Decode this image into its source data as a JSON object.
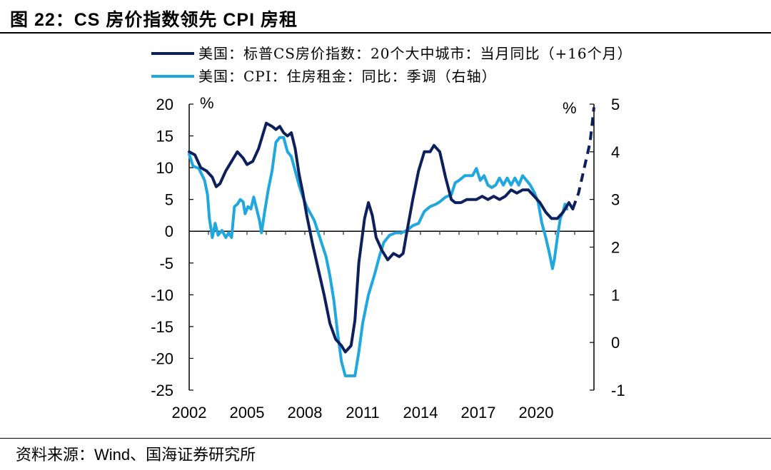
{
  "title": "图 22：CS 房价指数领先 CPI 房租",
  "source": "资料来源：Wind、国海证券研究所",
  "colors": {
    "case_shiller": "#0d1f5c",
    "cpi_rent": "#1fa8e0"
  },
  "chart_data": {
    "type": "line",
    "x_ticks": [
      "2002",
      "2005",
      "2008",
      "2011",
      "2014",
      "2017",
      "2020"
    ],
    "x_range": [
      2002,
      2023
    ],
    "left_axis": {
      "unit": "%",
      "ylim": [
        -25,
        20
      ],
      "ticks": [
        20,
        15,
        10,
        5,
        0,
        -5,
        -10,
        -15,
        -20,
        -25
      ]
    },
    "right_axis": {
      "unit": "%",
      "ylim": [
        -1,
        5
      ],
      "ticks": [
        5,
        4,
        3,
        2,
        1,
        0,
        -1
      ]
    },
    "series": [
      {
        "name": "美国：标普CS房价指数：20个大中城市：当月同比（+16个月）",
        "axis": "left",
        "color": "#0d1f5c",
        "points": [
          [
            2002.0,
            12.5
          ],
          [
            2002.3,
            12.0
          ],
          [
            2002.6,
            10.0
          ],
          [
            2002.9,
            9.5
          ],
          [
            2003.2,
            8.5
          ],
          [
            2003.4,
            7.0
          ],
          [
            2003.6,
            7.5
          ],
          [
            2003.9,
            9.5
          ],
          [
            2004.2,
            11.0
          ],
          [
            2004.5,
            12.5
          ],
          [
            2004.8,
            11.5
          ],
          [
            2005.0,
            10.5
          ],
          [
            2005.3,
            11.0
          ],
          [
            2005.6,
            13.0
          ],
          [
            2005.8,
            15.0
          ],
          [
            2006.0,
            17.0
          ],
          [
            2006.3,
            16.5
          ],
          [
            2006.5,
            16.0
          ],
          [
            2006.7,
            16.5
          ],
          [
            2006.9,
            15.5
          ],
          [
            2007.1,
            15.0
          ],
          [
            2007.3,
            15.5
          ],
          [
            2007.5,
            13.0
          ],
          [
            2007.7,
            9.0
          ],
          [
            2007.9,
            6.0
          ],
          [
            2008.1,
            2.5
          ],
          [
            2008.4,
            -2.0
          ],
          [
            2008.7,
            -6.0
          ],
          [
            2009.0,
            -10.0
          ],
          [
            2009.3,
            -14.5
          ],
          [
            2009.6,
            -17.0
          ],
          [
            2009.9,
            -18.0
          ],
          [
            2010.1,
            -19.0
          ],
          [
            2010.4,
            -18.0
          ],
          [
            2010.6,
            -14.0
          ],
          [
            2010.8,
            -5.0
          ],
          [
            2011.1,
            2.0
          ],
          [
            2011.3,
            4.5
          ],
          [
            2011.5,
            2.5
          ],
          [
            2011.7,
            -1.0
          ],
          [
            2012.0,
            -3.0
          ],
          [
            2012.3,
            -4.5
          ],
          [
            2012.6,
            -3.5
          ],
          [
            2012.9,
            -4.0
          ],
          [
            2013.1,
            -3.5
          ],
          [
            2013.3,
            0.0
          ],
          [
            2013.6,
            5.0
          ],
          [
            2013.9,
            9.5
          ],
          [
            2014.2,
            12.5
          ],
          [
            2014.5,
            12.5
          ],
          [
            2014.7,
            13.5
          ],
          [
            2015.0,
            12.5
          ],
          [
            2015.3,
            8.5
          ],
          [
            2015.6,
            5.0
          ],
          [
            2015.8,
            4.5
          ],
          [
            2016.1,
            4.5
          ],
          [
            2016.4,
            5.0
          ],
          [
            2016.7,
            5.0
          ],
          [
            2016.9,
            5.0
          ],
          [
            2017.2,
            5.5
          ],
          [
            2017.5,
            5.0
          ],
          [
            2017.8,
            5.5
          ],
          [
            2018.1,
            5.0
          ],
          [
            2018.4,
            5.5
          ],
          [
            2018.7,
            6.5
          ],
          [
            2019.0,
            6.0
          ],
          [
            2019.3,
            6.5
          ],
          [
            2019.6,
            6.5
          ],
          [
            2019.9,
            5.5
          ],
          [
            2020.2,
            4.5
          ],
          [
            2020.5,
            3.0
          ],
          [
            2020.8,
            2.0
          ],
          [
            2021.1,
            2.0
          ],
          [
            2021.4,
            3.0
          ],
          [
            2021.7,
            4.5
          ],
          [
            2021.9,
            3.5
          ]
        ],
        "dashed_points": [
          [
            2021.9,
            3.5
          ],
          [
            2022.2,
            6.0
          ],
          [
            2022.5,
            10.0
          ],
          [
            2022.8,
            14.0
          ],
          [
            2023.0,
            19.5
          ]
        ]
      },
      {
        "name": "美国：CPI：住房租金：同比：季调（右轴）",
        "axis": "right",
        "color": "#1fa8e0",
        "points": [
          [
            2002.0,
            3.95
          ],
          [
            2002.2,
            3.7
          ],
          [
            2002.5,
            3.65
          ],
          [
            2002.8,
            3.4
          ],
          [
            2002.95,
            3.1
          ],
          [
            2003.05,
            2.6
          ],
          [
            2003.2,
            2.2
          ],
          [
            2003.35,
            2.5
          ],
          [
            2003.5,
            2.25
          ],
          [
            2003.7,
            2.35
          ],
          [
            2003.9,
            2.2
          ],
          [
            2004.05,
            2.3
          ],
          [
            2004.2,
            2.2
          ],
          [
            2004.35,
            2.85
          ],
          [
            2004.5,
            2.9
          ],
          [
            2004.65,
            3.0
          ],
          [
            2004.8,
            2.95
          ],
          [
            2004.9,
            2.7
          ],
          [
            2005.05,
            2.85
          ],
          [
            2005.2,
            2.8
          ],
          [
            2005.35,
            3.05
          ],
          [
            2005.5,
            2.8
          ],
          [
            2005.65,
            2.55
          ],
          [
            2005.75,
            2.3
          ],
          [
            2005.9,
            2.7
          ],
          [
            2006.1,
            3.2
          ],
          [
            2006.3,
            3.6
          ],
          [
            2006.5,
            4.2
          ],
          [
            2006.7,
            4.3
          ],
          [
            2006.9,
            4.3
          ],
          [
            2007.1,
            4.0
          ],
          [
            2007.3,
            3.9
          ],
          [
            2007.5,
            3.6
          ],
          [
            2007.7,
            3.3
          ],
          [
            2007.9,
            3.05
          ],
          [
            2008.1,
            2.85
          ],
          [
            2008.3,
            2.7
          ],
          [
            2008.5,
            2.55
          ],
          [
            2008.7,
            2.3
          ],
          [
            2008.9,
            2.05
          ],
          [
            2009.1,
            1.8
          ],
          [
            2009.3,
            1.4
          ],
          [
            2009.5,
            0.9
          ],
          [
            2009.7,
            0.2
          ],
          [
            2009.9,
            -0.4
          ],
          [
            2010.1,
            -0.7
          ],
          [
            2010.4,
            -0.7
          ],
          [
            2010.6,
            -0.7
          ],
          [
            2010.8,
            -0.2
          ],
          [
            2011.0,
            0.4
          ],
          [
            2011.3,
            1.0
          ],
          [
            2011.6,
            1.4
          ],
          [
            2011.9,
            1.85
          ],
          [
            2012.1,
            2.1
          ],
          [
            2012.4,
            2.25
          ],
          [
            2012.7,
            2.3
          ],
          [
            2013.0,
            2.3
          ],
          [
            2013.3,
            2.35
          ],
          [
            2013.6,
            2.45
          ],
          [
            2013.9,
            2.5
          ],
          [
            2014.2,
            2.75
          ],
          [
            2014.5,
            2.85
          ],
          [
            2014.8,
            2.9
          ],
          [
            2015.0,
            2.95
          ],
          [
            2015.3,
            3.05
          ],
          [
            2015.6,
            3.1
          ],
          [
            2015.8,
            3.35
          ],
          [
            2016.0,
            3.4
          ],
          [
            2016.3,
            3.5
          ],
          [
            2016.5,
            3.5
          ],
          [
            2016.7,
            3.5
          ],
          [
            2016.9,
            3.65
          ],
          [
            2017.1,
            3.4
          ],
          [
            2017.3,
            3.5
          ],
          [
            2017.5,
            3.3
          ],
          [
            2017.7,
            3.25
          ],
          [
            2017.9,
            3.3
          ],
          [
            2018.1,
            3.45
          ],
          [
            2018.3,
            3.3
          ],
          [
            2018.5,
            3.45
          ],
          [
            2018.7,
            3.3
          ],
          [
            2018.9,
            3.45
          ],
          [
            2019.1,
            3.3
          ],
          [
            2019.3,
            3.5
          ],
          [
            2019.5,
            3.4
          ],
          [
            2019.7,
            3.3
          ],
          [
            2019.9,
            3.15
          ],
          [
            2020.1,
            2.95
          ],
          [
            2020.3,
            2.5
          ],
          [
            2020.5,
            2.2
          ],
          [
            2020.7,
            1.85
          ],
          [
            2020.85,
            1.55
          ],
          [
            2020.95,
            1.75
          ],
          [
            2021.1,
            2.2
          ],
          [
            2021.25,
            2.6
          ],
          [
            2021.4,
            2.75
          ],
          [
            2021.5,
            2.9
          ],
          [
            2021.6,
            2.8
          ]
        ]
      }
    ]
  }
}
